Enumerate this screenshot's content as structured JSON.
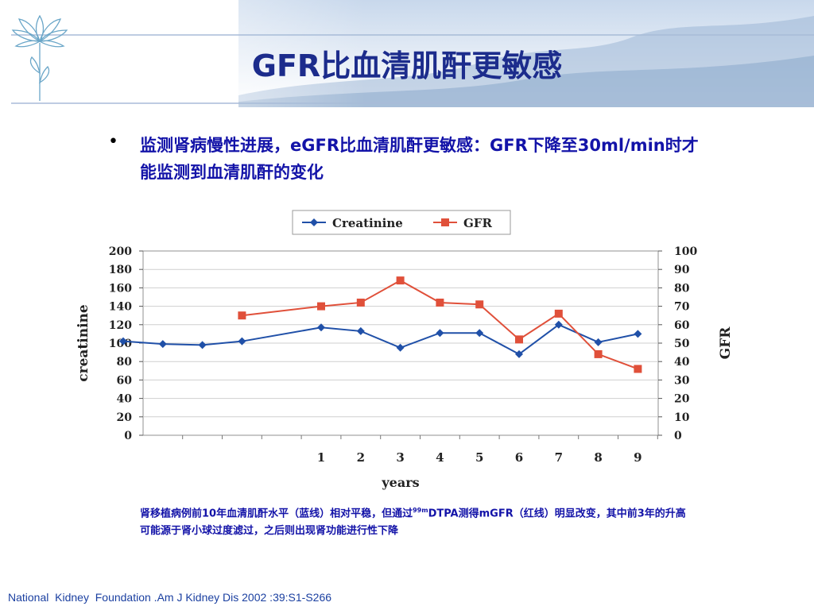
{
  "slide": {
    "title": "GFR比血清肌酐更敏感",
    "bullet": "监测肾病慢性进展，eGFR比血清肌酐更敏感：GFR下降至30ml/min时才能监测到血清肌酐的变化",
    "caption_pre": "肾移植病例前10年血清肌酐水平（蓝线）相对平稳，但通过",
    "caption_sup": "99m",
    "caption_post": "DTPA测得mGFR（红线）明显改变，其中前3年的升高可能源于肾小球过度滤过，之后则出现肾功能进行性下降",
    "citation": "National  Kidney  Foundation .Am J Kidney Dis 2002 :39:S1-S266"
  },
  "chart_data": {
    "type": "line",
    "title": "",
    "xlabel": "years",
    "ylabel_left": "creatinine",
    "ylabel_right": "GFR",
    "x": [
      -5,
      -4,
      -3,
      -2,
      -1,
      1,
      2,
      3,
      4,
      5,
      6,
      7,
      8,
      9
    ],
    "x_tick_labels": [
      "1",
      "2",
      "3",
      "4",
      "5",
      "6",
      "7",
      "8",
      "9"
    ],
    "ylim_left": [
      0,
      200
    ],
    "ylim_right": [
      0,
      100
    ],
    "yticks_left": [
      0,
      20,
      40,
      60,
      80,
      100,
      120,
      140,
      160,
      180,
      200
    ],
    "yticks_right": [
      0,
      10,
      20,
      30,
      40,
      50,
      60,
      70,
      80,
      90,
      100
    ],
    "grid": true,
    "legend_position": "top",
    "series": [
      {
        "name": "Creatinine",
        "axis": "left",
        "color": "#2050a8",
        "marker": "diamond",
        "x": [
          -4,
          -3,
          -2,
          -1,
          1,
          2,
          3,
          4,
          5,
          6,
          7,
          8,
          9
        ],
        "values": [
          102,
          99,
          98,
          102,
          117,
          113,
          95,
          111,
          111,
          88,
          120,
          101,
          110
        ]
      },
      {
        "name": "GFR",
        "axis": "right",
        "color": "#e0503a",
        "marker": "square",
        "x": [
          -1,
          1,
          2,
          3,
          4,
          5,
          6,
          7,
          8,
          9
        ],
        "values": [
          65,
          70,
          72,
          84,
          72,
          71,
          52,
          66,
          44,
          36
        ]
      }
    ]
  }
}
